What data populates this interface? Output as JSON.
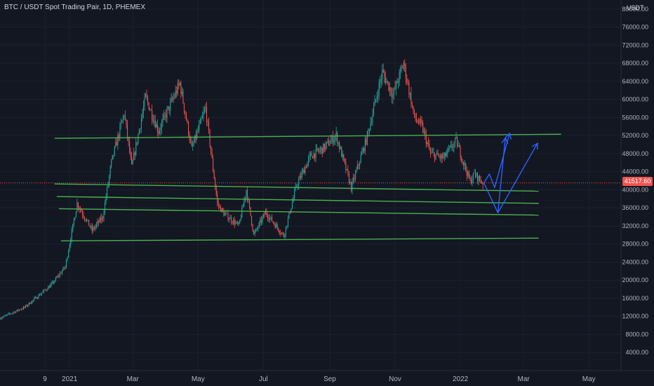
{
  "chart_data": {
    "type": "candlestick",
    "title": "BTC / USDT Spot Trading Pair, 1D, PHEMEX",
    "price_unit": "USDT",
    "last_price": "41517.60",
    "y_ticks": [
      80000,
      76000,
      72000,
      68000,
      64000,
      60000,
      56000,
      52000,
      48000,
      44000,
      40000,
      36000,
      32000,
      28000,
      24000,
      20000,
      16000,
      12000,
      8000,
      4000
    ],
    "y_tick_labels": [
      "80000.00",
      "76000.00",
      "72000.00",
      "68000.00",
      "64000.00",
      "60000.00",
      "56000.00",
      "52000.00",
      "48000.00",
      "44000.00",
      "40000.00",
      "36000.00",
      "32000.00",
      "28000.00",
      "24000.00",
      "20000.00",
      "16000.00",
      "12000.00",
      "8000.00",
      "4000.00"
    ],
    "ylim": [
      0,
      82000
    ],
    "x_ticks": [
      {
        "label": "9",
        "date": "2020-12-09"
      },
      {
        "label": "2021",
        "date": "2021-01-01"
      },
      {
        "label": "Mar",
        "date": "2021-03-01"
      },
      {
        "label": "May",
        "date": "2021-05-01"
      },
      {
        "label": "Jul",
        "date": "2021-07-01"
      },
      {
        "label": "Sep",
        "date": "2021-09-01"
      },
      {
        "label": "Nov",
        "date": "2021-11-01"
      },
      {
        "label": "2022",
        "date": "2022-01-01"
      },
      {
        "label": "Mar",
        "date": "2022-03-01"
      },
      {
        "label": "May",
        "date": "2022-05-01"
      }
    ],
    "xlim": [
      "2020-10-28",
      "2022-05-31"
    ],
    "price_path": [
      [
        "2020-10-28",
        11600
      ],
      [
        "2020-11-20",
        14000
      ],
      [
        "2020-12-15",
        19000
      ],
      [
        "2020-12-28",
        23000
      ],
      [
        "2021-01-08",
        37000
      ],
      [
        "2021-01-22",
        31000
      ],
      [
        "2021-02-01",
        34000
      ],
      [
        "2021-02-09",
        46000
      ],
      [
        "2021-02-21",
        57000
      ],
      [
        "2021-02-28",
        45000
      ],
      [
        "2021-03-13",
        60500
      ],
      [
        "2021-03-25",
        53000
      ],
      [
        "2021-04-14",
        63500
      ],
      [
        "2021-04-25",
        49000
      ],
      [
        "2021-05-08",
        58000
      ],
      [
        "2021-05-19",
        37000
      ],
      [
        "2021-05-24",
        35000
      ],
      [
        "2021-06-08",
        32000
      ],
      [
        "2021-06-15",
        40000
      ],
      [
        "2021-06-22",
        30000
      ],
      [
        "2021-07-03",
        35000
      ],
      [
        "2021-07-20",
        29800
      ],
      [
        "2021-08-01",
        41000
      ],
      [
        "2021-08-14",
        47500
      ],
      [
        "2021-08-25",
        49000
      ],
      [
        "2021-09-07",
        52000
      ],
      [
        "2021-09-21",
        40500
      ],
      [
        "2021-10-05",
        51000
      ],
      [
        "2021-10-20",
        66000
      ],
      [
        "2021-10-30",
        61000
      ],
      [
        "2021-11-09",
        68000
      ],
      [
        "2021-11-19",
        56000
      ],
      [
        "2021-11-26",
        54000
      ],
      [
        "2021-12-04",
        48000
      ],
      [
        "2021-12-16",
        47000
      ],
      [
        "2021-12-28",
        50800
      ],
      [
        "2022-01-10",
        41800
      ],
      [
        "2022-01-14",
        43500
      ],
      [
        "2022-01-22",
        41517.6
      ]
    ],
    "support_resistance_lines": [
      {
        "start": [
          "2020-12-18",
          51400
        ],
        "end": [
          "2022-04-05",
          52300
        ]
      },
      {
        "start": [
          "2020-12-18",
          41300
        ],
        "end": [
          "2022-03-15",
          39700
        ]
      },
      {
        "start": [
          "2020-12-20",
          38500
        ],
        "end": [
          "2022-03-15",
          37000
        ]
      },
      {
        "start": [
          "2020-12-22",
          35800
        ],
        "end": [
          "2022-03-15",
          34400
        ]
      },
      {
        "start": [
          "2020-12-24",
          28700
        ],
        "end": [
          "2022-03-15",
          29300
        ]
      }
    ],
    "projection_arrows": [
      {
        "points": [
          [
            "2022-01-23",
            41500
          ],
          [
            "2022-01-28",
            43500
          ],
          [
            "2022-02-02",
            40500
          ],
          [
            "2022-02-16",
            52500
          ]
        ]
      },
      {
        "points": [
          [
            "2022-01-23",
            41500
          ],
          [
            "2022-02-05",
            34900
          ],
          [
            "2022-02-12",
            51500
          ]
        ]
      },
      {
        "points": [
          [
            "2022-02-05",
            34900
          ],
          [
            "2022-03-14",
            50300
          ]
        ]
      }
    ],
    "colors": {
      "background": "#131722",
      "up": "#26a69a",
      "down": "#ef5350",
      "levels": "#4caf50",
      "projection": "#2962ff",
      "last_price": "#ef5350"
    }
  }
}
